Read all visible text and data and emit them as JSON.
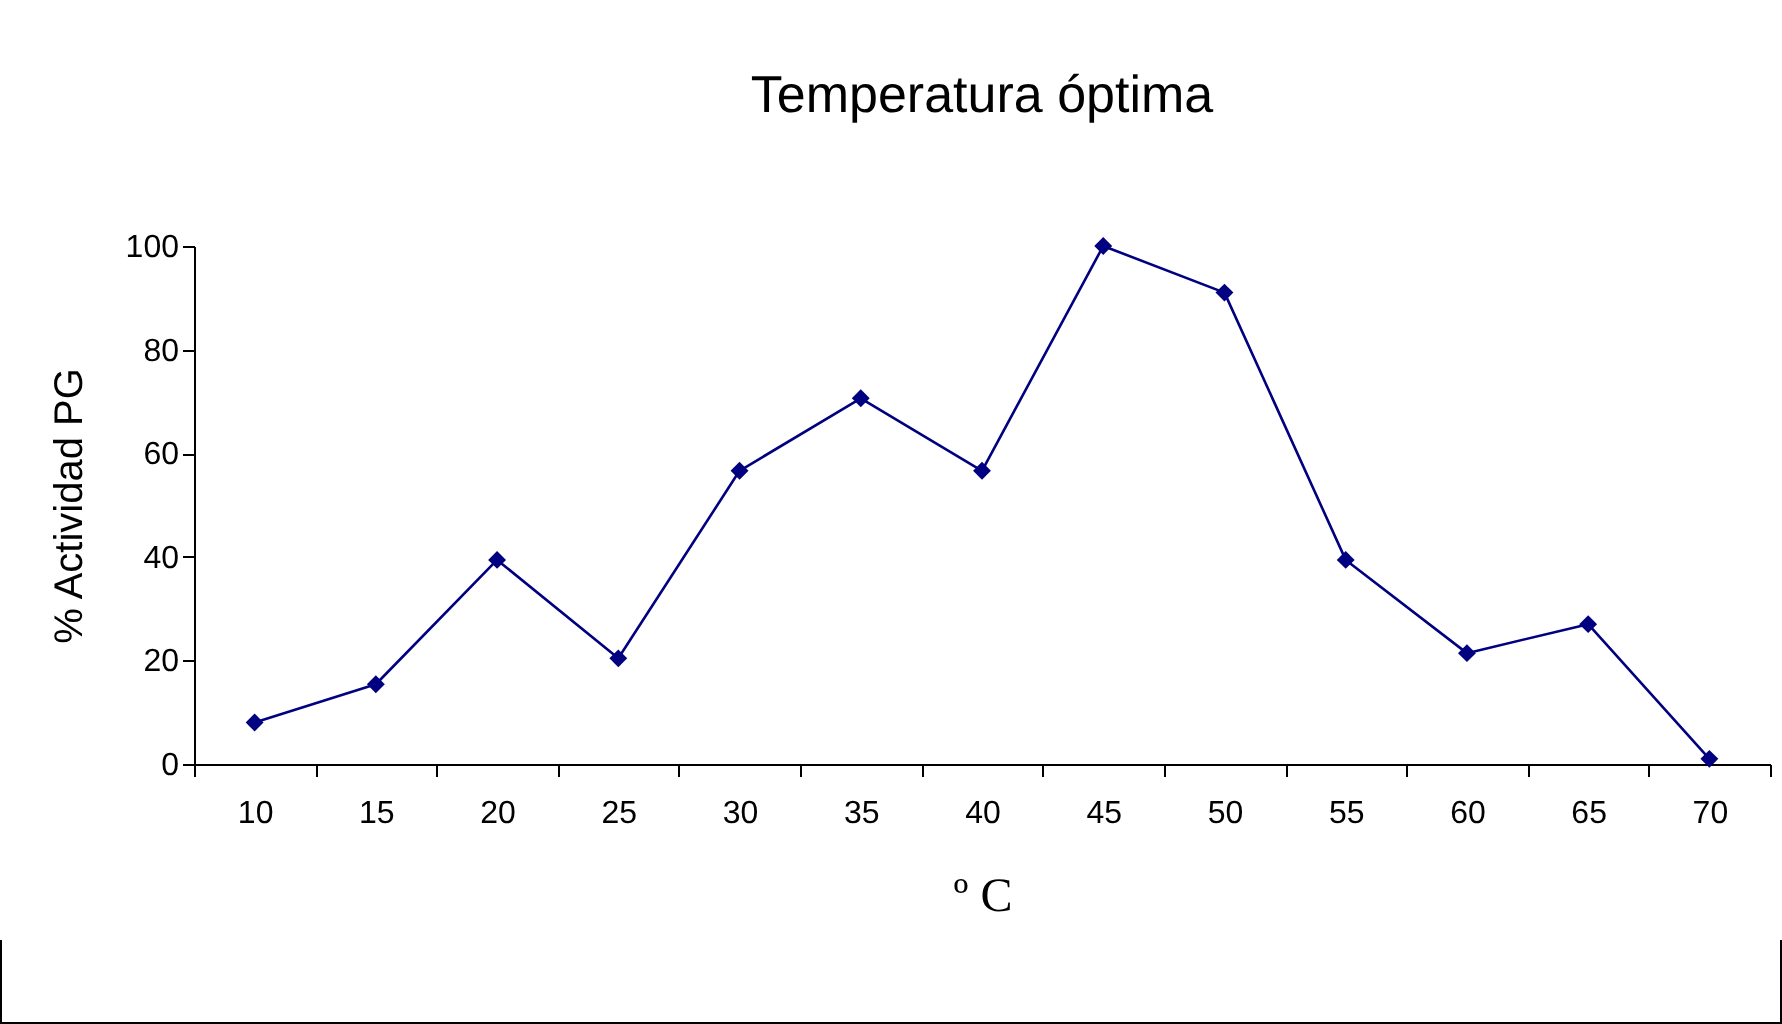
{
  "chart_data": {
    "type": "line",
    "title": "Temperatura óptima",
    "xlabel": "º C",
    "ylabel": "% Actividad PG",
    "categories": [
      "10",
      "15",
      "20",
      "25",
      "30",
      "35",
      "40",
      "45",
      "50",
      "55",
      "60",
      "65",
      "70"
    ],
    "series": [
      {
        "color": "#000080",
        "values": [
          8,
          15.4,
          39.4,
          20.4,
          56.6,
          70.6,
          56.6,
          100,
          91,
          39.4,
          21.4,
          27,
          1
        ]
      }
    ],
    "ylim": [
      0,
      100
    ],
    "yticks": [
      0,
      20,
      40,
      60,
      80,
      100
    ],
    "grid": false,
    "marker": "diamond",
    "line_style": "solid"
  }
}
